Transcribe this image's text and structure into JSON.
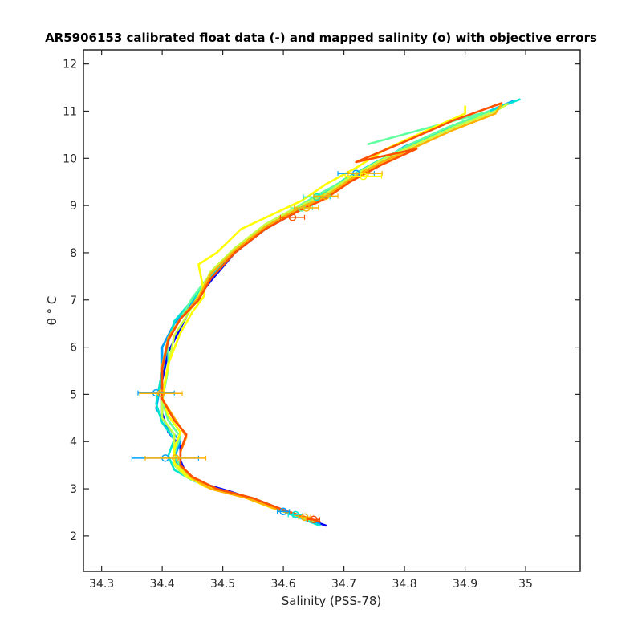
{
  "chart_data": {
    "type": "line",
    "title": "AR5906153 calibrated float data (-) and mapped salinity (o) with objective errors",
    "xlabel": "Salinity (PSS-78)",
    "ylabel": "θ ° C",
    "xlim": [
      34.27,
      35.09
    ],
    "ylim": [
      1.25,
      12.3
    ],
    "xticks": [
      34.3,
      34.4,
      34.5,
      34.6,
      34.7,
      34.8,
      34.9,
      35
    ],
    "xtick_labels": [
      "34.3",
      "34.4",
      "34.5",
      "34.6",
      "34.7",
      "34.8",
      "34.9",
      "35"
    ],
    "yticks": [
      2,
      3,
      4,
      5,
      6,
      7,
      8,
      9,
      10,
      11,
      12
    ],
    "ytick_labels": [
      "2",
      "3",
      "4",
      "5",
      "6",
      "7",
      "8",
      "9",
      "10",
      "11",
      "12"
    ],
    "grid": false,
    "legend": "none",
    "colors": [
      "#0000ff",
      "#00a0ff",
      "#00e5d0",
      "#60ffa0",
      "#c8ff40",
      "#ffff00",
      "#ffb000",
      "#ff5000"
    ],
    "series": [
      {
        "color": "#0000ff",
        "x": [
          34.67,
          34.62,
          34.57,
          34.51,
          34.47,
          34.44,
          34.43,
          34.43,
          34.41,
          34.4,
          34.4,
          34.41,
          34.43,
          34.45,
          34.48,
          34.52,
          34.57,
          34.62,
          34.65,
          34.69,
          34.74,
          34.8,
          34.85,
          34.92,
          34.98
        ],
        "y": [
          2.22,
          2.45,
          2.7,
          2.95,
          3.1,
          3.3,
          3.6,
          3.9,
          4.2,
          4.6,
          5.3,
          5.9,
          6.4,
          6.9,
          7.4,
          8.0,
          8.5,
          8.85,
          9.1,
          9.45,
          9.8,
          10.2,
          10.5,
          10.9,
          11.2
        ]
      },
      {
        "color": "#00a0ff",
        "x": [
          34.66,
          34.61,
          34.56,
          34.5,
          34.46,
          34.43,
          34.42,
          34.43,
          34.41,
          34.39,
          34.4,
          34.4,
          34.42,
          34.45,
          34.48,
          34.52,
          34.57,
          34.62,
          34.66,
          34.7,
          34.75,
          34.8,
          34.86,
          34.93,
          34.98
        ],
        "y": [
          2.25,
          2.5,
          2.75,
          2.95,
          3.15,
          3.35,
          3.65,
          4.0,
          4.3,
          4.7,
          5.4,
          6.0,
          6.5,
          6.95,
          7.45,
          8.0,
          8.5,
          8.9,
          9.15,
          9.5,
          9.85,
          10.25,
          10.55,
          10.95,
          11.22
        ]
      },
      {
        "color": "#00e5d0",
        "x": [
          34.66,
          34.6,
          34.55,
          34.49,
          34.45,
          34.42,
          34.41,
          34.42,
          34.4,
          34.39,
          34.4,
          34.41,
          34.42,
          34.45,
          34.48,
          34.52,
          34.57,
          34.62,
          34.66,
          34.7,
          34.75,
          34.81,
          34.87,
          34.93,
          34.99
        ],
        "y": [
          2.22,
          2.52,
          2.78,
          2.98,
          3.18,
          3.4,
          3.7,
          4.05,
          4.4,
          4.8,
          5.5,
          6.1,
          6.55,
          7.0,
          7.5,
          8.05,
          8.55,
          8.9,
          9.2,
          9.55,
          9.9,
          10.28,
          10.6,
          10.95,
          11.25
        ]
      },
      {
        "color": "#60ffa0",
        "x": [
          34.65,
          34.6,
          34.55,
          34.49,
          34.45,
          34.43,
          34.42,
          34.43,
          34.41,
          34.4,
          34.41,
          34.41,
          34.43,
          34.45,
          34.48,
          34.52,
          34.57,
          34.62,
          34.66,
          34.71,
          34.76,
          34.81,
          34.87,
          34.94,
          34.74
        ],
        "y": [
          2.3,
          2.55,
          2.8,
          3.0,
          3.2,
          3.45,
          3.75,
          4.1,
          4.45,
          4.85,
          5.55,
          6.2,
          6.6,
          7.05,
          7.55,
          8.1,
          8.6,
          8.95,
          9.25,
          9.6,
          9.95,
          10.3,
          10.65,
          11.0,
          10.3
        ]
      },
      {
        "color": "#c8ff40",
        "x": [
          34.64,
          34.59,
          34.54,
          34.48,
          34.44,
          34.42,
          34.42,
          34.42,
          34.4,
          34.4,
          34.41,
          34.42,
          34.44,
          34.46,
          34.48,
          34.52,
          34.57,
          34.62,
          34.67,
          34.71,
          34.76,
          34.82,
          34.88,
          34.95,
          34.97
        ],
        "y": [
          2.35,
          2.58,
          2.82,
          3.02,
          3.25,
          3.5,
          3.8,
          4.15,
          4.5,
          4.9,
          5.6,
          6.25,
          6.65,
          7.1,
          7.6,
          8.1,
          8.6,
          8.95,
          9.25,
          9.6,
          9.95,
          10.3,
          10.65,
          11.0,
          11.15
        ]
      },
      {
        "color": "#ffff00",
        "x": [
          34.64,
          34.58,
          34.53,
          34.47,
          34.44,
          34.42,
          34.42,
          34.43,
          34.41,
          34.4,
          34.41,
          34.43,
          34.45,
          34.47,
          34.46,
          34.49,
          34.53,
          34.58,
          34.63,
          34.67,
          34.72,
          34.77,
          34.83,
          34.9,
          34.9
        ],
        "y": [
          2.38,
          2.6,
          2.85,
          3.05,
          3.28,
          3.55,
          3.85,
          4.2,
          4.55,
          4.95,
          5.65,
          6.3,
          6.75,
          7.1,
          7.75,
          8.0,
          8.5,
          8.8,
          9.1,
          9.45,
          9.8,
          10.2,
          10.55,
          10.95,
          11.1
        ]
      },
      {
        "color": "#ffb000",
        "x": [
          34.65,
          34.59,
          34.54,
          34.48,
          34.45,
          34.43,
          34.43,
          34.44,
          34.42,
          34.4,
          34.4,
          34.41,
          34.43,
          34.46,
          34.48,
          34.52,
          34.57,
          34.62,
          34.67,
          34.71,
          34.76,
          34.82,
          34.88,
          34.95,
          34.96
        ],
        "y": [
          2.33,
          2.56,
          2.8,
          3.0,
          3.22,
          3.48,
          3.78,
          4.1,
          4.5,
          4.9,
          5.6,
          6.2,
          6.6,
          7.05,
          7.55,
          8.05,
          8.55,
          8.9,
          9.2,
          9.55,
          9.9,
          10.25,
          10.6,
          10.95,
          11.15
        ]
      },
      {
        "color": "#ff5000",
        "x": [
          34.66,
          34.6,
          34.55,
          34.49,
          34.45,
          34.43,
          34.43,
          34.44,
          34.42,
          34.4,
          34.4,
          34.41,
          34.43,
          34.46,
          34.48,
          34.52,
          34.57,
          34.62,
          34.67,
          34.71,
          34.76,
          34.82,
          34.72,
          34.8,
          34.88,
          34.96
        ],
        "y": [
          2.3,
          2.55,
          2.8,
          3.0,
          3.25,
          3.5,
          3.8,
          4.15,
          4.45,
          4.9,
          5.55,
          6.15,
          6.6,
          7.0,
          7.45,
          8.0,
          8.5,
          8.85,
          9.15,
          9.5,
          9.85,
          10.2,
          9.92,
          10.35,
          10.8,
          11.17
        ]
      }
    ],
    "mapped_salinity": {
      "marker": "o",
      "points": [
        {
          "x": 34.6,
          "y": 2.52,
          "err": 0.01,
          "color": "#00a0ff"
        },
        {
          "x": 34.62,
          "y": 2.45,
          "err": 0.012,
          "color": "#00e5d0"
        },
        {
          "x": 34.635,
          "y": 2.4,
          "err": 0.01,
          "color": "#ffb000"
        },
        {
          "x": 34.65,
          "y": 2.35,
          "err": 0.01,
          "color": "#ff5000"
        },
        {
          "x": 34.405,
          "y": 3.65,
          "err": 0.055,
          "color": "#00a0ff"
        },
        {
          "x": 34.422,
          "y": 3.65,
          "err": 0.05,
          "color": "#ffb000"
        },
        {
          "x": 34.39,
          "y": 5.03,
          "err": 0.03,
          "color": "#00a0ff"
        },
        {
          "x": 34.398,
          "y": 5.02,
          "err": 0.035,
          "color": "#ffb000"
        },
        {
          "x": 34.615,
          "y": 8.75,
          "err": 0.02,
          "color": "#ff5000"
        },
        {
          "x": 34.63,
          "y": 8.95,
          "err": 0.018,
          "color": "#60ffa0"
        },
        {
          "x": 34.638,
          "y": 8.95,
          "err": 0.02,
          "color": "#ffb000"
        },
        {
          "x": 34.655,
          "y": 9.18,
          "err": 0.022,
          "color": "#00e5d0"
        },
        {
          "x": 34.67,
          "y": 9.2,
          "err": 0.02,
          "color": "#ffb000"
        },
        {
          "x": 34.72,
          "y": 9.68,
          "err": 0.03,
          "color": "#00a0ff"
        },
        {
          "x": 34.735,
          "y": 9.68,
          "err": 0.028,
          "color": "#ffb000"
        },
        {
          "x": 34.732,
          "y": 9.62,
          "err": 0.03,
          "color": "#ffff00"
        }
      ]
    }
  }
}
